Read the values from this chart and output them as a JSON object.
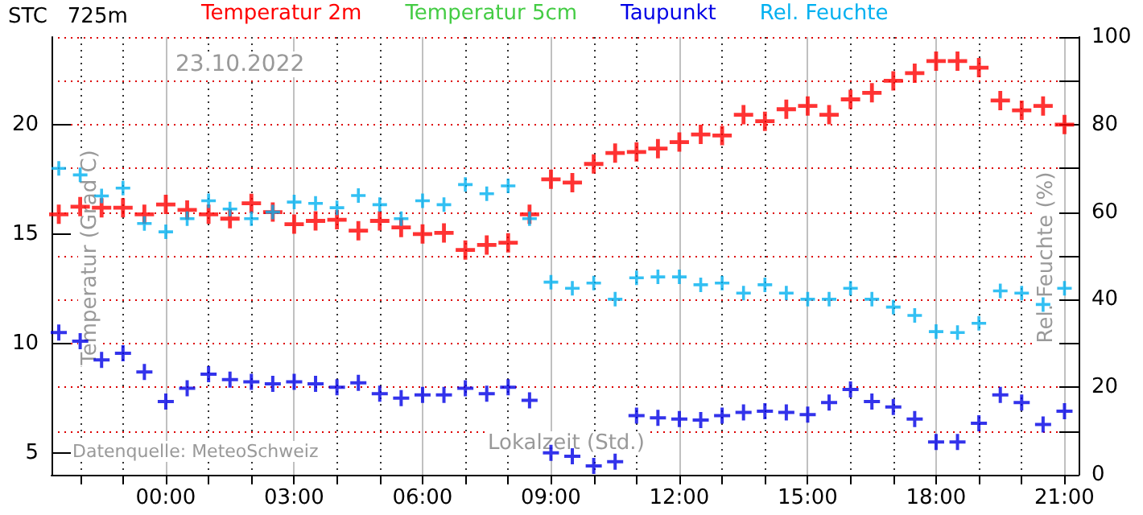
{
  "chart_data": {
    "type": "scatter",
    "title": "STC   725m",
    "xlabel": "Lokalzeit (Std.)",
    "ylabel": "Temperatur (Grad C)",
    "y2label": "Rel. Feuchte (%)",
    "annotations": [
      "23.10.2022",
      "Datenquelle: MeteoSchweiz"
    ],
    "x": [
      -2.5,
      -2,
      -1.5,
      -1,
      -0.5,
      0,
      0.5,
      1,
      1.5,
      2,
      2.5,
      3,
      3.5,
      4,
      4.5,
      5,
      5.5,
      6,
      6.5,
      7,
      7.5,
      8,
      8.5,
      9,
      9.5,
      10,
      10.5,
      11,
      11.5,
      12,
      12.5,
      13,
      13.5,
      14,
      14.5,
      15,
      15.5,
      16,
      16.5,
      17,
      17.5,
      18,
      18.5,
      19,
      19.5,
      20,
      20.5,
      21
    ],
    "series": [
      {
        "name": "Temperatur 2m",
        "color": "#ff0000",
        "values": [
          15.9,
          16.25,
          16.2,
          16.2,
          15.9,
          16.35,
          16.1,
          15.9,
          15.7,
          16.4,
          16.0,
          15.45,
          15.6,
          15.65,
          15.15,
          15.6,
          15.3,
          15.0,
          15.05,
          14.27,
          14.5,
          14.6,
          15.9,
          17.5,
          17.35,
          18.2,
          18.7,
          18.75,
          18.9,
          19.2,
          19.55,
          19.5,
          20.45,
          20.15,
          20.7,
          20.85,
          20.45,
          21.15,
          21.45,
          22.0,
          22.35,
          22.9,
          22.9,
          22.6,
          21.1,
          20.65,
          20.85,
          20.0
        ]
      },
      {
        "name": "Temperatur 5cm",
        "color": "#44cc44",
        "values": [
          null,
          null,
          null,
          null,
          null,
          null,
          null,
          null,
          null,
          null,
          null,
          null,
          null,
          null,
          null,
          null,
          null,
          null,
          null,
          null,
          null,
          null,
          null,
          null,
          null,
          null,
          null,
          null,
          null,
          null,
          null,
          null,
          null,
          null,
          null,
          null,
          null,
          null,
          null,
          null,
          null,
          null,
          null,
          null,
          null,
          null,
          null,
          null
        ]
      },
      {
        "name": "Taupunkt",
        "color": "#0000e6",
        "values": [
          10.5,
          10.1,
          9.25,
          9.55,
          8.7,
          7.35,
          7.95,
          8.6,
          8.35,
          8.25,
          8.15,
          8.25,
          8.15,
          8.0,
          8.2,
          7.7,
          7.5,
          7.65,
          7.65,
          7.95,
          7.7,
          8.0,
          7.4,
          5.0,
          4.85,
          4.4,
          4.6,
          6.7,
          6.6,
          6.55,
          6.5,
          6.7,
          6.85,
          6.9,
          6.85,
          6.75,
          7.3,
          7.9,
          7.35,
          7.1,
          6.55,
          5.5,
          5.5,
          6.35,
          7.65,
          7.3,
          6.3,
          6.9
        ]
      },
      {
        "name": "Rel. Feuchte",
        "color": "#00b0f0",
        "axis": "y2",
        "values": [
          70,
          68.5,
          63.7,
          65.5,
          57.4,
          55.5,
          58.5,
          62.6,
          60.7,
          58.5,
          60,
          62.3,
          62,
          61,
          63.8,
          61.7,
          58.5,
          62.6,
          61.7,
          66.3,
          64.2,
          66,
          58.5,
          44,
          42.6,
          43.8,
          40.1,
          45,
          45.2,
          45.2,
          43.4,
          43.8,
          41.5,
          43.4,
          41.5,
          40.1,
          40.1,
          42.6,
          40.1,
          38.3,
          36.4,
          32.7,
          32.5,
          34.6,
          42,
          41.5,
          38.9,
          42.6
        ]
      }
    ],
    "xlim": [
      -2.67,
      21.33
    ],
    "xticks": [
      {
        "value": -2,
        "label": null
      },
      {
        "value": -1,
        "label": null
      },
      {
        "value": 0,
        "label": "00:00"
      },
      {
        "value": 1,
        "label": null
      },
      {
        "value": 2,
        "label": null
      },
      {
        "value": 3,
        "label": "03:00"
      },
      {
        "value": 4,
        "label": null
      },
      {
        "value": 5,
        "label": null
      },
      {
        "value": 6,
        "label": "06:00"
      },
      {
        "value": 7,
        "label": null
      },
      {
        "value": 8,
        "label": null
      },
      {
        "value": 9,
        "label": "09:00"
      },
      {
        "value": 10,
        "label": null
      },
      {
        "value": 11,
        "label": null
      },
      {
        "value": 12,
        "label": "12:00"
      },
      {
        "value": 13,
        "label": null
      },
      {
        "value": 14,
        "label": null
      },
      {
        "value": 15,
        "label": "15:00"
      },
      {
        "value": 16,
        "label": null
      },
      {
        "value": 17,
        "label": null
      },
      {
        "value": 18,
        "label": "18:00"
      },
      {
        "value": 19,
        "label": null
      },
      {
        "value": 20,
        "label": null
      },
      {
        "value": 21,
        "label": "21:00"
      }
    ],
    "ylim": [
      4,
      24
    ],
    "yticks": [
      5,
      10,
      15,
      20
    ],
    "y2lim": [
      0,
      100
    ],
    "y2ticks": [
      0,
      {
        "value": 10,
        "label": null
      },
      20,
      {
        "value": 30,
        "label": null
      },
      40,
      {
        "value": 50,
        "label": null
      },
      60,
      {
        "value": 70,
        "label": null
      },
      80,
      {
        "value": 90,
        "label": null
      },
      100
    ],
    "grid": true,
    "legend": "top",
    "marker": "cross"
  }
}
